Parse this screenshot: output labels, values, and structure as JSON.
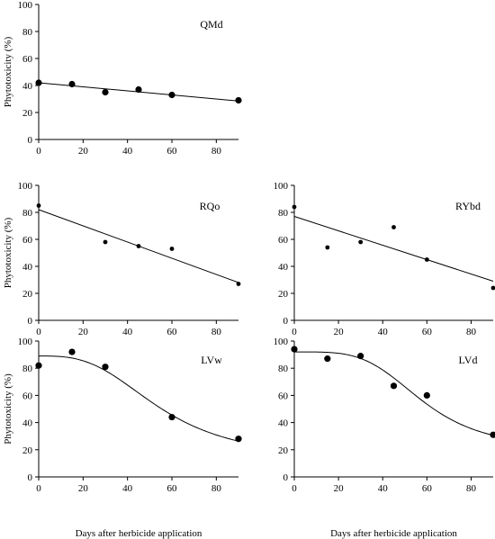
{
  "chart_data": [
    {
      "type": "scatter",
      "panel_label": "QMd",
      "ylabel": "Phytotoxicity (%)",
      "xlabel": "",
      "xlim": [
        0,
        90
      ],
      "ylim": [
        0,
        100
      ],
      "x_ticks": [
        "0",
        "20",
        "40",
        "60",
        "80"
      ],
      "y_ticks": [
        "0",
        "20",
        "40",
        "60",
        "80",
        "100"
      ],
      "points": [
        {
          "x": 0,
          "y": 42
        },
        {
          "x": 15,
          "y": 41
        },
        {
          "x": 30,
          "y": 35
        },
        {
          "x": 45,
          "y": 37
        },
        {
          "x": 60,
          "y": 33
        },
        {
          "x": 90,
          "y": 29
        }
      ],
      "fit": {
        "kind": "linear",
        "x0": 0,
        "y0": 42,
        "x1": 90,
        "y1": 28.5
      },
      "marker_size": "large"
    },
    {
      "type": "scatter",
      "panel_label": "RQo",
      "ylabel": "Phytotoxicity (%)",
      "xlabel": "",
      "xlim": [
        0,
        90
      ],
      "ylim": [
        0,
        100
      ],
      "x_ticks": [
        "0",
        "20",
        "40",
        "60",
        "80"
      ],
      "y_ticks": [
        "0",
        "20",
        "40",
        "60",
        "80",
        "100"
      ],
      "points": [
        {
          "x": 0,
          "y": 85
        },
        {
          "x": 30,
          "y": 58
        },
        {
          "x": 45,
          "y": 55
        },
        {
          "x": 60,
          "y": 53
        },
        {
          "x": 90,
          "y": 27
        }
      ],
      "fit": {
        "kind": "linear",
        "x0": 0,
        "y0": 82,
        "x1": 90,
        "y1": 28
      },
      "marker_size": "small"
    },
    {
      "type": "scatter",
      "panel_label": "RYbd",
      "ylabel": "",
      "xlabel": "",
      "xlim": [
        0,
        90
      ],
      "ylim": [
        0,
        100
      ],
      "x_ticks": [
        "0",
        "20",
        "40",
        "60",
        "80"
      ],
      "y_ticks": [
        "0",
        "20",
        "40",
        "60",
        "80",
        "100"
      ],
      "points": [
        {
          "x": 0,
          "y": 84
        },
        {
          "x": 15,
          "y": 54
        },
        {
          "x": 30,
          "y": 58
        },
        {
          "x": 45,
          "y": 69
        },
        {
          "x": 60,
          "y": 45
        },
        {
          "x": 90,
          "y": 24
        }
      ],
      "fit": {
        "kind": "linear",
        "x0": 0,
        "y0": 77,
        "x1": 90,
        "y1": 29
      },
      "marker_size": "small"
    },
    {
      "type": "scatter",
      "panel_label": "LVw",
      "ylabel": "Phytotoxicity (%)",
      "xlabel": "Days after herbicide application",
      "xlim": [
        0,
        90
      ],
      "ylim": [
        0,
        100
      ],
      "x_ticks": [
        "0",
        "20",
        "40",
        "60",
        "80"
      ],
      "y_ticks": [
        "0",
        "20",
        "40",
        "60",
        "80",
        "100"
      ],
      "points": [
        {
          "x": 0,
          "y": 82
        },
        {
          "x": 15,
          "y": 92
        },
        {
          "x": 30,
          "y": 81
        },
        {
          "x": 60,
          "y": 44
        },
        {
          "x": 90,
          "y": 28
        }
      ],
      "fit": {
        "kind": "logistic",
        "top": 89,
        "bottom": 12,
        "x50": 55,
        "slope": 3
      },
      "marker_size": "large"
    },
    {
      "type": "scatter",
      "panel_label": "LVd",
      "ylabel": "",
      "xlabel": "Days after herbicide application",
      "xlim": [
        0,
        90
      ],
      "ylim": [
        0,
        100
      ],
      "x_ticks": [
        "0",
        "20",
        "40",
        "60",
        "80"
      ],
      "y_ticks": [
        "0",
        "20",
        "40",
        "60",
        "80",
        "100"
      ],
      "points": [
        {
          "x": 0,
          "y": 94
        },
        {
          "x": 15,
          "y": 87
        },
        {
          "x": 30,
          "y": 89
        },
        {
          "x": 45,
          "y": 67
        },
        {
          "x": 60,
          "y": 60
        },
        {
          "x": 90,
          "y": 31
        }
      ],
      "fit": {
        "kind": "logistic",
        "top": 92,
        "bottom": 20,
        "x50": 58,
        "slope": 4
      },
      "marker_size": "large"
    }
  ]
}
